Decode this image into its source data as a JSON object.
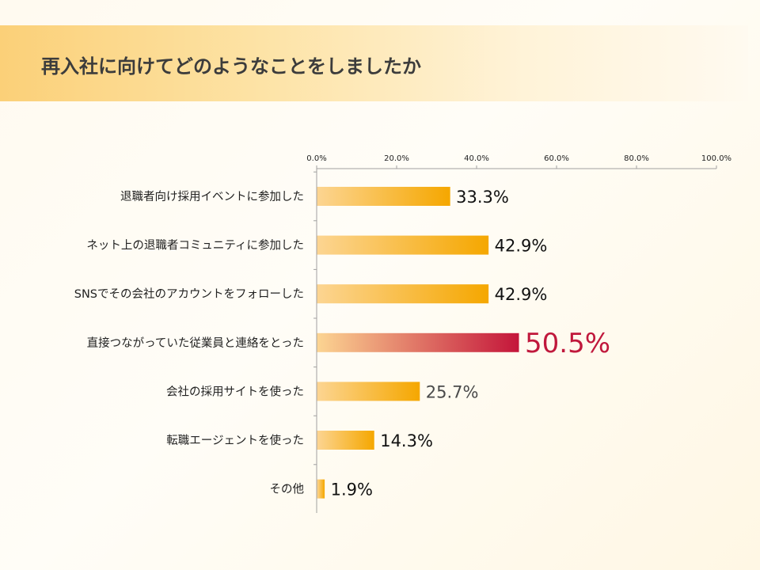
{
  "page": {
    "title": "再入社に向けてどのようなことをしましたか"
  },
  "colors": {
    "bar_light": "#fcd592",
    "bar_dark": "#f5a700",
    "highlight_light": "#fcd592",
    "highlight_dark": "#c4153a",
    "axis": "#a0a0a0",
    "highlight_label": "#c0183c"
  },
  "chart_data": {
    "type": "bar",
    "orientation": "horizontal",
    "title": "再入社に向けてどのようなことをしましたか",
    "xlim": [
      0,
      100
    ],
    "x_ticks": [
      0,
      20,
      40,
      60,
      80,
      100
    ],
    "x_tick_labels": [
      "0.0%",
      "20.0%",
      "40.0%",
      "60.0%",
      "80.0%",
      "100.0%"
    ],
    "xaxis_position": "top",
    "categories": [
      "退職者向け採用イベントに参加した",
      "ネット上の退職者コミュニティに参加した",
      "SNSでその会社のアカウントをフォローした",
      "直接つながっていた従業員と連絡をとった",
      "会社の採用サイトを使った",
      "転職エージェントを使った",
      "その他"
    ],
    "values": [
      33.3,
      42.9,
      42.9,
      50.5,
      25.7,
      14.3,
      1.9
    ],
    "value_labels": [
      "33.3%",
      "42.9%",
      "42.9%",
      "50.5%",
      "25.7%",
      "14.3%",
      "1.9%"
    ],
    "highlight_index": 3,
    "grid": false,
    "legend": "none"
  }
}
